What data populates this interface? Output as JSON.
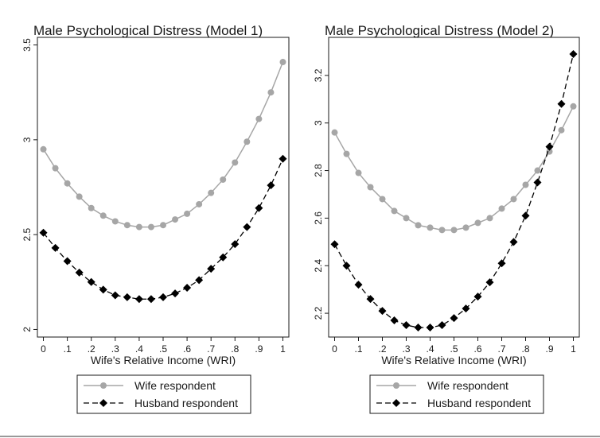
{
  "chart_data": [
    {
      "type": "line",
      "title": "Male Psychological Distress (Model 1)",
      "xlabel": "Wife's Relative Income (WRI)",
      "ylabel": "",
      "x": [
        0,
        0.05,
        0.1,
        0.15,
        0.2,
        0.25,
        0.3,
        0.35,
        0.4,
        0.45,
        0.5,
        0.55,
        0.6,
        0.65,
        0.7,
        0.75,
        0.8,
        0.85,
        0.9,
        0.95,
        1.0
      ],
      "xticks": [
        0,
        0.1,
        0.2,
        0.3,
        0.4,
        0.5,
        0.6,
        0.7,
        0.8,
        0.9,
        1
      ],
      "xtick_labels": [
        "0",
        ".1",
        ".2",
        ".3",
        ".4",
        ".5",
        ".6",
        ".7",
        ".8",
        ".9",
        "1"
      ],
      "yticks": [
        2,
        2.5,
        3,
        3.5
      ],
      "ytick_labels": [
        "2",
        "2.5",
        "3",
        "3.5"
      ],
      "ylim": [
        1.96,
        3.54
      ],
      "xlim": [
        -0.025,
        1.025
      ],
      "grid": false,
      "legend_position": "below",
      "series": [
        {
          "name": "Wife respondent",
          "color": "#a6a6a6",
          "marker": "circle",
          "line": "solid",
          "values": [
            2.95,
            2.85,
            2.77,
            2.7,
            2.64,
            2.6,
            2.57,
            2.55,
            2.54,
            2.54,
            2.55,
            2.58,
            2.61,
            2.66,
            2.72,
            2.79,
            2.88,
            2.99,
            3.11,
            3.25,
            3.41
          ]
        },
        {
          "name": "Husband respondent",
          "color": "#000000",
          "marker": "diamond",
          "line": "dashed",
          "values": [
            2.51,
            2.43,
            2.36,
            2.3,
            2.25,
            2.21,
            2.18,
            2.17,
            2.16,
            2.16,
            2.17,
            2.19,
            2.22,
            2.26,
            2.32,
            2.38,
            2.45,
            2.54,
            2.64,
            2.76,
            2.9
          ]
        }
      ]
    },
    {
      "type": "line",
      "title": "Male Psychological Distress (Model 2)",
      "xlabel": "Wife's Relative Income (WRI)",
      "ylabel": "",
      "x": [
        0,
        0.05,
        0.1,
        0.15,
        0.2,
        0.25,
        0.3,
        0.35,
        0.4,
        0.45,
        0.5,
        0.55,
        0.6,
        0.65,
        0.7,
        0.75,
        0.8,
        0.85,
        0.9,
        0.95,
        1.0
      ],
      "xticks": [
        0,
        0.1,
        0.2,
        0.3,
        0.4,
        0.5,
        0.6,
        0.7,
        0.8,
        0.9,
        1
      ],
      "xtick_labels": [
        "0",
        ".1",
        ".2",
        ".3",
        ".4",
        ".5",
        ".6",
        ".7",
        ".8",
        ".9",
        "1"
      ],
      "yticks": [
        2.2,
        2.4,
        2.6,
        2.8,
        3,
        3.2
      ],
      "ytick_labels": [
        "2.2",
        "2.4",
        "2.6",
        "2.8",
        "3",
        "3.2"
      ],
      "ylim": [
        2.1,
        3.36
      ],
      "xlim": [
        -0.025,
        1.025
      ],
      "grid": false,
      "legend_position": "below",
      "series": [
        {
          "name": "Wife respondent",
          "color": "#a6a6a6",
          "marker": "circle",
          "line": "solid",
          "values": [
            2.96,
            2.87,
            2.79,
            2.73,
            2.68,
            2.63,
            2.6,
            2.57,
            2.56,
            2.55,
            2.55,
            2.56,
            2.58,
            2.6,
            2.64,
            2.68,
            2.74,
            2.8,
            2.88,
            2.97,
            3.07
          ]
        },
        {
          "name": "Husband respondent",
          "color": "#000000",
          "marker": "diamond",
          "line": "dashed",
          "values": [
            2.49,
            2.4,
            2.32,
            2.26,
            2.21,
            2.17,
            2.15,
            2.14,
            2.14,
            2.15,
            2.18,
            2.22,
            2.27,
            2.33,
            2.41,
            2.5,
            2.61,
            2.75,
            2.9,
            3.08,
            3.29
          ]
        }
      ]
    }
  ]
}
